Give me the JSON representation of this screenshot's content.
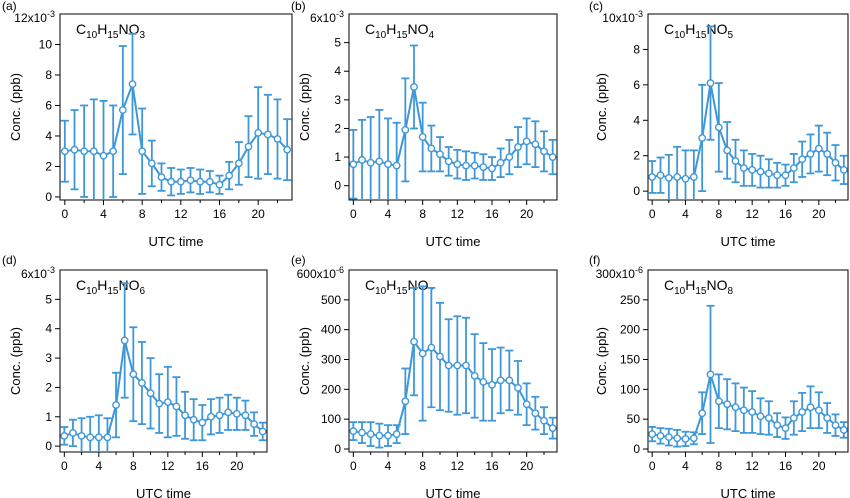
{
  "style": {
    "series_color": "#3e97d8",
    "axis_color": "#000000"
  },
  "chart_data": [
    {
      "type": "line",
      "panel_label": "(a)",
      "formula": {
        "main": "C",
        "sub1": "10",
        "mid1": "H",
        "sub2": "15",
        "mid2": "NO",
        "sub3": "3"
      },
      "ylabel": "Conc. (ppb)",
      "xlabel": "UTC time",
      "yscale_label": "12x10",
      "yscale_exp": "-3",
      "yticks": [
        0,
        2,
        4,
        6,
        8,
        10
      ],
      "ylim": [
        -0.2,
        12
      ],
      "xticks": [
        0,
        4,
        8,
        12,
        16,
        20
      ],
      "xlim": [
        -0.5,
        23.5
      ],
      "x": [
        0,
        1,
        2,
        3,
        4,
        5,
        6,
        7,
        8,
        9,
        10,
        11,
        12,
        13,
        14,
        15,
        16,
        17,
        18,
        19,
        20,
        21,
        22,
        23
      ],
      "y": [
        3.0,
        3.1,
        3.0,
        3.0,
        2.7,
        3.0,
        5.7,
        7.4,
        3.0,
        2.2,
        1.3,
        1.0,
        1.0,
        1.1,
        1.0,
        1.0,
        0.8,
        1.4,
        2.2,
        3.3,
        4.2,
        4.1,
        3.8,
        3.1
      ],
      "err": [
        2.0,
        2.6,
        3.0,
        3.4,
        3.6,
        3.0,
        4.2,
        3.3,
        2.8,
        1.5,
        0.9,
        0.9,
        0.8,
        0.8,
        0.8,
        0.7,
        0.6,
        0.9,
        1.4,
        2.0,
        3.0,
        2.6,
        2.6,
        2.0
      ]
    },
    {
      "type": "line",
      "panel_label": "(b)",
      "formula": {
        "main": "C",
        "sub1": "10",
        "mid1": "H",
        "sub2": "15",
        "mid2": "NO",
        "sub3": "4"
      },
      "ylabel": "Conc. (ppb)",
      "xlabel": "UTC time",
      "yscale_label": "6x10",
      "yscale_exp": "-3",
      "yticks": [
        0,
        1,
        2,
        3,
        4,
        5
      ],
      "ylim": [
        -0.5,
        6
      ],
      "xticks": [
        0,
        4,
        8,
        12,
        16,
        20
      ],
      "xlim": [
        -0.5,
        23.5
      ],
      "x": [
        0,
        1,
        2,
        3,
        4,
        5,
        6,
        7,
        8,
        9,
        10,
        11,
        12,
        13,
        14,
        15,
        16,
        17,
        18,
        19,
        20,
        21,
        22,
        23
      ],
      "y": [
        0.75,
        0.9,
        0.8,
        0.85,
        0.75,
        0.7,
        1.95,
        3.45,
        1.7,
        1.3,
        1.1,
        0.85,
        0.75,
        0.7,
        0.7,
        0.65,
        0.6,
        0.8,
        1.0,
        1.35,
        1.55,
        1.45,
        1.2,
        1.0
      ],
      "err": [
        1.2,
        1.4,
        1.6,
        1.8,
        1.6,
        1.5,
        1.8,
        1.45,
        1.2,
        0.8,
        0.6,
        0.5,
        0.5,
        0.5,
        0.45,
        0.45,
        0.4,
        0.5,
        0.6,
        0.7,
        0.8,
        0.8,
        0.7,
        0.6
      ]
    },
    {
      "type": "line",
      "panel_label": "(c)",
      "formula": {
        "main": "C",
        "sub1": "10",
        "mid1": "H",
        "sub2": "15",
        "mid2": "NO",
        "sub3": "5"
      },
      "ylabel": "Conc. (ppb)",
      "xlabel": "UTC time",
      "yscale_label": "10x10",
      "yscale_exp": "-3",
      "yticks": [
        0,
        2,
        4,
        6,
        8
      ],
      "ylim": [
        -0.5,
        10
      ],
      "xticks": [
        0,
        4,
        8,
        12,
        16,
        20
      ],
      "xlim": [
        -0.5,
        23.5
      ],
      "x": [
        0,
        1,
        2,
        3,
        4,
        5,
        6,
        7,
        8,
        9,
        10,
        11,
        12,
        13,
        14,
        15,
        16,
        17,
        18,
        19,
        20,
        21,
        22,
        23
      ],
      "y": [
        0.8,
        0.9,
        0.75,
        0.8,
        0.7,
        0.8,
        3.0,
        6.1,
        3.6,
        2.3,
        1.7,
        1.3,
        1.2,
        1.1,
        1.0,
        0.9,
        0.9,
        1.3,
        1.8,
        2.1,
        2.4,
        2.1,
        1.6,
        1.2
      ],
      "err": [
        0.9,
        1.0,
        1.3,
        1.7,
        1.6,
        1.5,
        3.0,
        3.2,
        2.5,
        1.6,
        1.2,
        1.0,
        0.9,
        0.9,
        0.8,
        0.7,
        0.6,
        0.8,
        1.0,
        1.1,
        1.3,
        1.2,
        1.0,
        0.8
      ]
    },
    {
      "type": "line",
      "panel_label": "(d)",
      "formula": {
        "main": "C",
        "sub1": "10",
        "mid1": "H",
        "sub2": "15",
        "mid2": "NO",
        "sub3": "6"
      },
      "ylabel": "Conc. (ppb)",
      "xlabel": "UTC time",
      "yscale_label": "6x10",
      "yscale_exp": "-3",
      "yticks": [
        0,
        1,
        2,
        3,
        4,
        5
      ],
      "ylim": [
        -0.2,
        6
      ],
      "xticks": [
        0,
        4,
        8,
        12,
        16,
        20
      ],
      "xlim": [
        -0.5,
        23.5
      ],
      "x": [
        0,
        1,
        2,
        3,
        4,
        5,
        6,
        7,
        8,
        9,
        10,
        11,
        12,
        13,
        14,
        15,
        16,
        17,
        18,
        19,
        20,
        21,
        22,
        23
      ],
      "y": [
        0.35,
        0.45,
        0.35,
        0.3,
        0.3,
        0.3,
        1.4,
        3.6,
        2.45,
        2.15,
        1.8,
        1.45,
        1.5,
        1.35,
        1.05,
        0.9,
        0.8,
        1.0,
        1.05,
        1.15,
        1.1,
        1.05,
        0.75,
        0.5
      ],
      "err": [
        0.3,
        0.45,
        0.6,
        0.7,
        0.75,
        0.65,
        1.1,
        1.95,
        1.6,
        1.4,
        1.2,
        1.0,
        1.2,
        1.0,
        0.8,
        0.7,
        0.6,
        0.6,
        0.6,
        0.6,
        0.55,
        0.5,
        0.4,
        0.3
      ]
    },
    {
      "type": "line",
      "panel_label": "(e)",
      "formula": {
        "main": "C",
        "sub1": "10",
        "mid1": "H",
        "sub2": "15",
        "mid2": "NO",
        "sub3": "7"
      },
      "ylabel": "Conc. (ppb)",
      "xlabel": "UTC time",
      "yscale_label": "600x10",
      "yscale_exp": "-6",
      "yticks": [
        0,
        100,
        200,
        300,
        400,
        500
      ],
      "ylim": [
        -10,
        600
      ],
      "xticks": [
        0,
        4,
        8,
        12,
        16,
        20
      ],
      "xlim": [
        -0.5,
        23.5
      ],
      "x": [
        0,
        1,
        2,
        3,
        4,
        5,
        6,
        7,
        8,
        9,
        10,
        11,
        12,
        13,
        14,
        15,
        16,
        17,
        18,
        19,
        20,
        21,
        22,
        23
      ],
      "y": [
        60,
        55,
        50,
        45,
        45,
        50,
        160,
        360,
        320,
        340,
        310,
        280,
        280,
        280,
        245,
        225,
        215,
        230,
        230,
        205,
        150,
        120,
        95,
        70
      ],
      "err": [
        30,
        35,
        40,
        40,
        35,
        30,
        110,
        180,
        225,
        200,
        180,
        155,
        165,
        160,
        140,
        130,
        120,
        110,
        100,
        90,
        70,
        55,
        45,
        35
      ]
    },
    {
      "type": "line",
      "panel_label": "(f)",
      "formula": {
        "main": "C",
        "sub1": "10",
        "mid1": "H",
        "sub2": "15",
        "mid2": "NO",
        "sub3": "8"
      },
      "ylabel": "Conc. (ppb)",
      "xlabel": "UTC time",
      "yscale_label": "300x10",
      "yscale_exp": "-6",
      "yticks": [
        0,
        50,
        100,
        150,
        200,
        250
      ],
      "ylim": [
        -5,
        300
      ],
      "xticks": [
        0,
        4,
        8,
        12,
        16,
        20
      ],
      "xlim": [
        -0.5,
        23.5
      ],
      "x": [
        0,
        1,
        2,
        3,
        4,
        5,
        6,
        7,
        8,
        9,
        10,
        11,
        12,
        13,
        14,
        15,
        16,
        17,
        18,
        19,
        20,
        21,
        22,
        23
      ],
      "y": [
        25,
        22,
        20,
        18,
        17,
        18,
        60,
        125,
        80,
        75,
        70,
        65,
        62,
        55,
        52,
        40,
        35,
        52,
        62,
        70,
        65,
        52,
        40,
        32
      ],
      "err": [
        12,
        13,
        14,
        14,
        12,
        10,
        35,
        115,
        45,
        42,
        40,
        38,
        35,
        30,
        28,
        20,
        18,
        28,
        32,
        35,
        30,
        25,
        18,
        13
      ]
    }
  ]
}
